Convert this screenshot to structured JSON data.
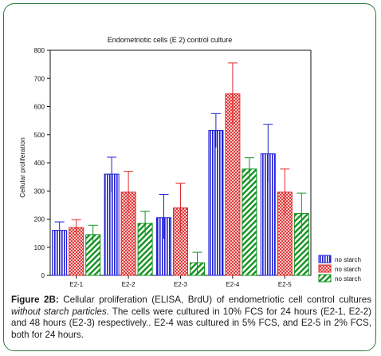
{
  "chart_data": {
    "type": "bar",
    "title": "Endometriotic cells (E 2) control culture",
    "xlabel": "",
    "ylabel": "Cellular proliferation",
    "ylim": [
      0,
      800
    ],
    "yticks": [
      0,
      100,
      200,
      300,
      400,
      500,
      600,
      700,
      800
    ],
    "categories": [
      "E2-1",
      "E2-2",
      "E2-3",
      "E2-4",
      "E2-5"
    ],
    "series": [
      {
        "name": "no starch",
        "color": "#1f1fd6",
        "pattern": "vertical-stripes",
        "values": [
          160,
          360,
          205,
          515,
          432
        ],
        "error_low": [
          125,
          295,
          130,
          455,
          330
        ],
        "error_high": [
          190,
          420,
          288,
          575,
          537
        ]
      },
      {
        "name": "no starch",
        "color": "#e02a2a",
        "pattern": "crosshatch",
        "values": [
          170,
          296,
          240,
          645,
          296
        ],
        "error_low": [
          145,
          222,
          150,
          535,
          215
        ],
        "error_high": [
          198,
          370,
          328,
          755,
          378
        ]
      },
      {
        "name": "no starch",
        "color": "#12921f",
        "pattern": "diagonal-stripes",
        "values": [
          145,
          185,
          45,
          378,
          220
        ],
        "error_low": [
          110,
          145,
          10,
          338,
          148
        ],
        "error_high": [
          178,
          228,
          82,
          418,
          292
        ]
      }
    ],
    "grid": false,
    "legend_position": "bottom-right"
  },
  "caption": {
    "label": "Figure 2B:",
    "text_before": " Cellular proliferation (ELISA, BrdU) of endometriotic cell control cultures ",
    "text_italic": "without starch particles",
    "text_after": ". The cells were cultured in 10% FCS for 24 hours (E2-1, E2-2) and 48 hours (E2-3) respectively.. E2-4 was cultured in 5% FCS, and E2-5 in 2% FCS, both for 24 hours."
  }
}
